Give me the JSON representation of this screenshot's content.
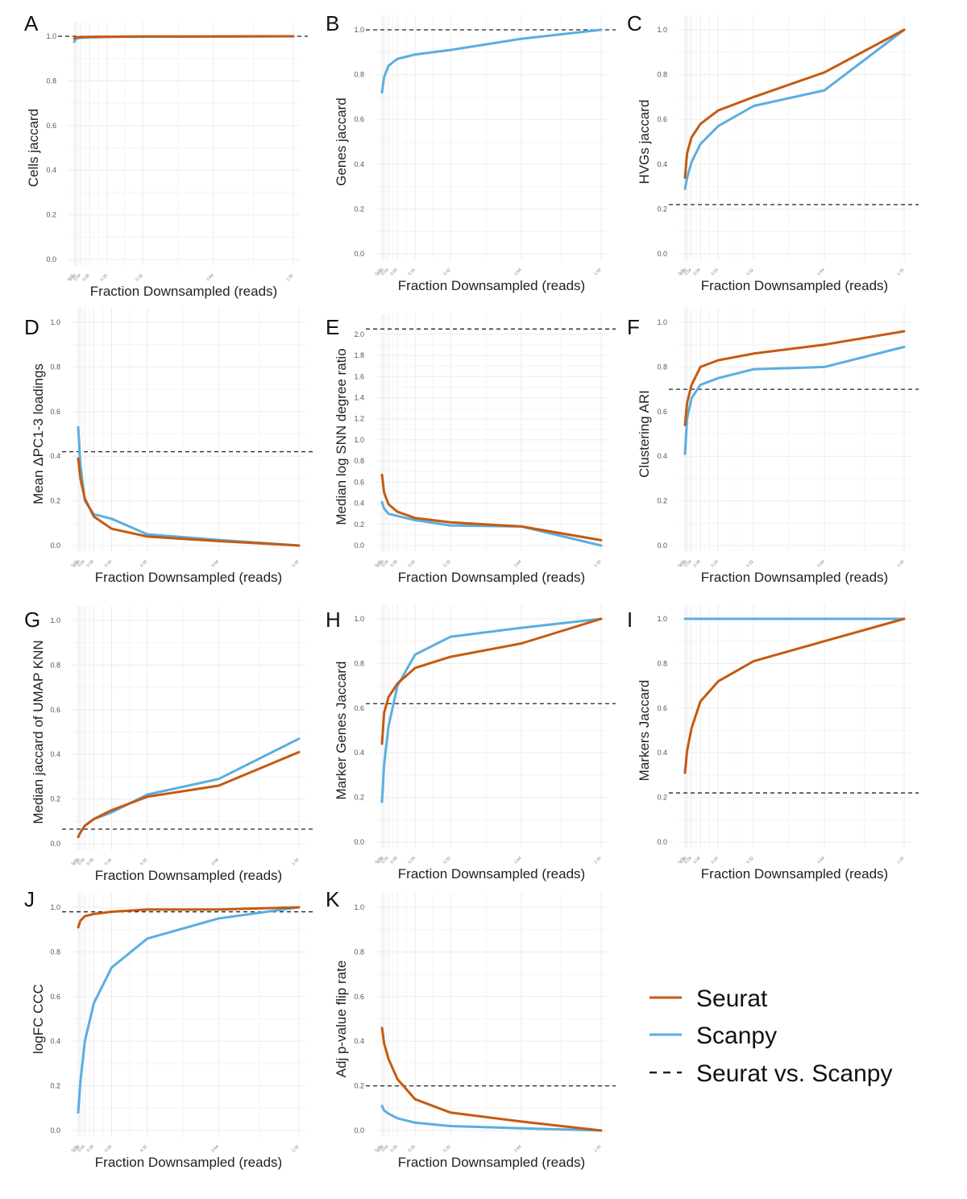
{
  "colors": {
    "seurat": "#c55a11",
    "scanpy": "#5aaee0",
    "reference": "#222222",
    "grid": "#ebebeb"
  },
  "legend": {
    "items": [
      {
        "label": "Seurat",
        "style": "solid",
        "color": "#c55a11"
      },
      {
        "label": "Scanpy",
        "style": "solid",
        "color": "#5aaee0"
      },
      {
        "label": "Seurat vs. Scanpy",
        "style": "dashed",
        "color": "#222222"
      }
    ]
  },
  "chart_data": [
    {
      "type": "line",
      "panel": "A",
      "ylabel": "Cells jaccard",
      "xlabel": "Fraction Downsampled (reads)",
      "x": [
        0.01,
        0.02,
        0.04,
        0.08,
        0.16,
        0.32,
        0.64,
        1.0
      ],
      "xticks": [
        "0.01",
        "0.02",
        "0.04",
        "0.08",
        "0.16",
        "0.32",
        "0.64",
        "1.00"
      ],
      "yticks": [
        "0.0",
        "0.2",
        "0.4",
        "0.6",
        "0.8",
        "1.0"
      ],
      "ylim": [
        0,
        1.0
      ],
      "reference": 1.0,
      "series": [
        {
          "name": "Seurat",
          "values": [
            0.99,
            0.995,
            0.996,
            0.997,
            0.998,
            0.999,
            0.999,
            1.0
          ]
        },
        {
          "name": "Scanpy",
          "values": [
            0.975,
            0.99,
            0.993,
            0.995,
            0.997,
            0.998,
            0.999,
            1.0
          ]
        }
      ]
    },
    {
      "type": "line",
      "panel": "B",
      "ylabel": "Genes jaccard",
      "xlabel": "Fraction Downsampled (reads)",
      "x": [
        0.01,
        0.02,
        0.04,
        0.08,
        0.16,
        0.32,
        0.64,
        1.0
      ],
      "xticks": [
        "0.01",
        "0.02",
        "0.04",
        "0.08",
        "0.16",
        "0.32",
        "0.64",
        "1.00"
      ],
      "yticks": [
        "0.0",
        "0.2",
        "0.4",
        "0.6",
        "0.8",
        "1.0"
      ],
      "ylim": [
        0,
        1.0
      ],
      "reference": 1.0,
      "series": [
        {
          "name": "Scanpy",
          "values": [
            0.72,
            0.79,
            0.84,
            0.87,
            0.89,
            0.91,
            0.96,
            1.0
          ]
        }
      ]
    },
    {
      "type": "line",
      "panel": "C",
      "ylabel": "HVGs jaccard",
      "xlabel": "Fraction Downsampled (reads)",
      "x": [
        0.01,
        0.02,
        0.04,
        0.08,
        0.16,
        0.32,
        0.64,
        1.0
      ],
      "xticks": [
        "0.01",
        "0.02",
        "0.04",
        "0.08",
        "0.16",
        "0.32",
        "0.64",
        "1.00"
      ],
      "yticks": [
        "0.0",
        "0.2",
        "0.4",
        "0.6",
        "0.8",
        "1.0"
      ],
      "ylim": [
        0,
        1.0
      ],
      "reference": 0.22,
      "series": [
        {
          "name": "Seurat",
          "values": [
            0.34,
            0.45,
            0.52,
            0.58,
            0.64,
            0.7,
            0.81,
            1.0
          ]
        },
        {
          "name": "Scanpy",
          "values": [
            0.29,
            0.34,
            0.41,
            0.49,
            0.57,
            0.66,
            0.73,
            1.0
          ]
        }
      ]
    },
    {
      "type": "line",
      "panel": "D",
      "ylabel": "Mean ΔPC1-3 loadings",
      "xlabel": "Fraction Downsampled (reads)",
      "x": [
        0.01,
        0.02,
        0.04,
        0.08,
        0.16,
        0.32,
        0.64,
        1.0
      ],
      "xticks": [
        "0.01",
        "0.02",
        "0.04",
        "0.08",
        "0.16",
        "0.32",
        "0.64",
        "1.00"
      ],
      "yticks": [
        "0.0",
        "0.2",
        "0.4",
        "0.6",
        "0.8",
        "1.0"
      ],
      "ylim": [
        0,
        1.0
      ],
      "reference": 0.42,
      "series": [
        {
          "name": "Seurat",
          "values": [
            0.39,
            0.3,
            0.21,
            0.13,
            0.075,
            0.04,
            0.02,
            0.0
          ]
        },
        {
          "name": "Scanpy",
          "values": [
            0.53,
            0.36,
            0.2,
            0.14,
            0.12,
            0.05,
            0.025,
            0.0
          ]
        }
      ]
    },
    {
      "type": "line",
      "panel": "E",
      "ylabel": "Median log SNN degree ratio",
      "xlabel": "Fraction Downsampled (reads)",
      "x": [
        0.01,
        0.02,
        0.04,
        0.08,
        0.16,
        0.32,
        0.64,
        1.0
      ],
      "xticks": [
        "0.01",
        "0.02",
        "0.04",
        "0.08",
        "0.16",
        "0.32",
        "0.64",
        "1.00"
      ],
      "yticks": [
        "0.0",
        "0.2",
        "0.4",
        "0.6",
        "0.8",
        "1.0",
        "1.2",
        "1.4",
        "1.6",
        "1.8",
        "2.0"
      ],
      "ylim": [
        0,
        2.06
      ],
      "reference": 2.05,
      "series": [
        {
          "name": "Seurat",
          "values": [
            0.67,
            0.5,
            0.39,
            0.32,
            0.26,
            0.22,
            0.18,
            0.05
          ]
        },
        {
          "name": "Scanpy",
          "values": [
            0.41,
            0.35,
            0.3,
            0.28,
            0.24,
            0.19,
            0.18,
            0.0
          ]
        }
      ]
    },
    {
      "type": "line",
      "panel": "F",
      "ylabel": "Clustering ARI",
      "xlabel": "Fraction Downsampled (reads)",
      "x": [
        0.01,
        0.02,
        0.04,
        0.08,
        0.16,
        0.32,
        0.64,
        1.0
      ],
      "xticks": [
        "0.01",
        "0.02",
        "0.04",
        "0.08",
        "0.16",
        "0.32",
        "0.64",
        "1.00"
      ],
      "yticks": [
        "0.0",
        "0.2",
        "0.4",
        "0.6",
        "0.8",
        "1.0"
      ],
      "ylim": [
        0,
        1.0
      ],
      "reference": 0.7,
      "series": [
        {
          "name": "Seurat",
          "values": [
            0.54,
            0.64,
            0.72,
            0.8,
            0.83,
            0.86,
            0.9,
            0.96
          ]
        },
        {
          "name": "Scanpy",
          "values": [
            0.41,
            0.57,
            0.66,
            0.72,
            0.75,
            0.79,
            0.8,
            0.89
          ]
        }
      ]
    },
    {
      "type": "line",
      "panel": "G",
      "ylabel": "Median jaccard of UMAP KNN",
      "xlabel": "Fraction Downsampled (reads)",
      "x": [
        0.01,
        0.02,
        0.04,
        0.08,
        0.16,
        0.32,
        0.64,
        1.0
      ],
      "xticks": [
        "0.01",
        "0.02",
        "0.04",
        "0.08",
        "0.16",
        "0.32",
        "0.64",
        "1.00"
      ],
      "yticks": [
        "0.0",
        "0.2",
        "0.4",
        "0.6",
        "0.8",
        "1.0"
      ],
      "ylim": [
        0,
        1.0
      ],
      "reference": 0.065,
      "series": [
        {
          "name": "Seurat",
          "values": [
            0.03,
            0.05,
            0.08,
            0.11,
            0.15,
            0.21,
            0.26,
            0.41
          ]
        },
        {
          "name": "Scanpy",
          "values": [
            0.03,
            0.05,
            0.08,
            0.11,
            0.14,
            0.22,
            0.29,
            0.47
          ]
        }
      ]
    },
    {
      "type": "line",
      "panel": "H",
      "ylabel": "Marker Genes Jaccard",
      "xlabel": "Fraction Downsampled (reads)",
      "x": [
        0.01,
        0.02,
        0.04,
        0.08,
        0.16,
        0.32,
        0.64,
        1.0
      ],
      "xticks": [
        "0.01",
        "0.02",
        "0.04",
        "0.08",
        "0.16",
        "0.32",
        "0.64",
        "1.00"
      ],
      "yticks": [
        "0.0",
        "0.2",
        "0.4",
        "0.6",
        "0.8",
        "1.0"
      ],
      "ylim": [
        0,
        1.0
      ],
      "reference": 0.62,
      "series": [
        {
          "name": "Seurat",
          "values": [
            0.44,
            0.58,
            0.65,
            0.71,
            0.78,
            0.83,
            0.89,
            1.0
          ]
        },
        {
          "name": "Scanpy",
          "values": [
            0.18,
            0.35,
            0.52,
            0.7,
            0.84,
            0.92,
            0.96,
            1.0
          ]
        }
      ]
    },
    {
      "type": "line",
      "panel": "I",
      "ylabel": "Markers Jaccard",
      "xlabel": "Fraction Downsampled (reads)",
      "x": [
        0.01,
        0.02,
        0.04,
        0.08,
        0.16,
        0.32,
        0.64,
        1.0
      ],
      "xticks": [
        "0.01",
        "0.02",
        "0.04",
        "0.08",
        "0.16",
        "0.32",
        "0.64",
        "1.00"
      ],
      "yticks": [
        "0.0",
        "0.2",
        "0.4",
        "0.6",
        "0.8",
        "1.0"
      ],
      "ylim": [
        0,
        1.0
      ],
      "reference": 0.22,
      "series": [
        {
          "name": "Seurat",
          "values": [
            0.31,
            0.41,
            0.51,
            0.63,
            0.72,
            0.81,
            0.9,
            1.0
          ]
        },
        {
          "name": "Scanpy",
          "values": [
            1.0,
            1.0,
            1.0,
            1.0,
            1.0,
            1.0,
            1.0,
            1.0
          ]
        }
      ]
    },
    {
      "type": "line",
      "panel": "J",
      "ylabel": "logFC CCC",
      "xlabel": "Fraction Downsampled (reads)",
      "x": [
        0.01,
        0.02,
        0.04,
        0.08,
        0.16,
        0.32,
        0.64,
        1.0
      ],
      "xticks": [
        "0.01",
        "0.02",
        "0.04",
        "0.08",
        "0.16",
        "0.32",
        "0.64",
        "1.00"
      ],
      "yticks": [
        "0.0",
        "0.2",
        "0.4",
        "0.6",
        "0.8",
        "1.0"
      ],
      "ylim": [
        0,
        1.0
      ],
      "reference": 0.98,
      "series": [
        {
          "name": "Seurat",
          "values": [
            0.91,
            0.94,
            0.96,
            0.97,
            0.98,
            0.99,
            0.99,
            1.0
          ]
        },
        {
          "name": "Scanpy",
          "values": [
            0.08,
            0.22,
            0.4,
            0.57,
            0.73,
            0.86,
            0.95,
            1.0
          ]
        }
      ]
    },
    {
      "type": "line",
      "panel": "K",
      "ylabel": "Adj p-value flip rate",
      "xlabel": "Fraction Downsampled (reads)",
      "x": [
        0.01,
        0.02,
        0.04,
        0.08,
        0.16,
        0.32,
        0.64,
        1.0
      ],
      "xticks": [
        "0.01",
        "0.02",
        "0.04",
        "0.08",
        "0.16",
        "0.32",
        "0.64",
        "1.00"
      ],
      "yticks": [
        "0.0",
        "0.2",
        "0.4",
        "0.6",
        "0.8",
        "1.0"
      ],
      "ylim": [
        0,
        1.0
      ],
      "reference": 0.2,
      "series": [
        {
          "name": "Seurat",
          "values": [
            0.46,
            0.39,
            0.32,
            0.23,
            0.14,
            0.08,
            0.04,
            0.0
          ]
        },
        {
          "name": "Scanpy",
          "values": [
            0.11,
            0.09,
            0.075,
            0.055,
            0.035,
            0.02,
            0.01,
            0.0
          ]
        }
      ]
    }
  ]
}
